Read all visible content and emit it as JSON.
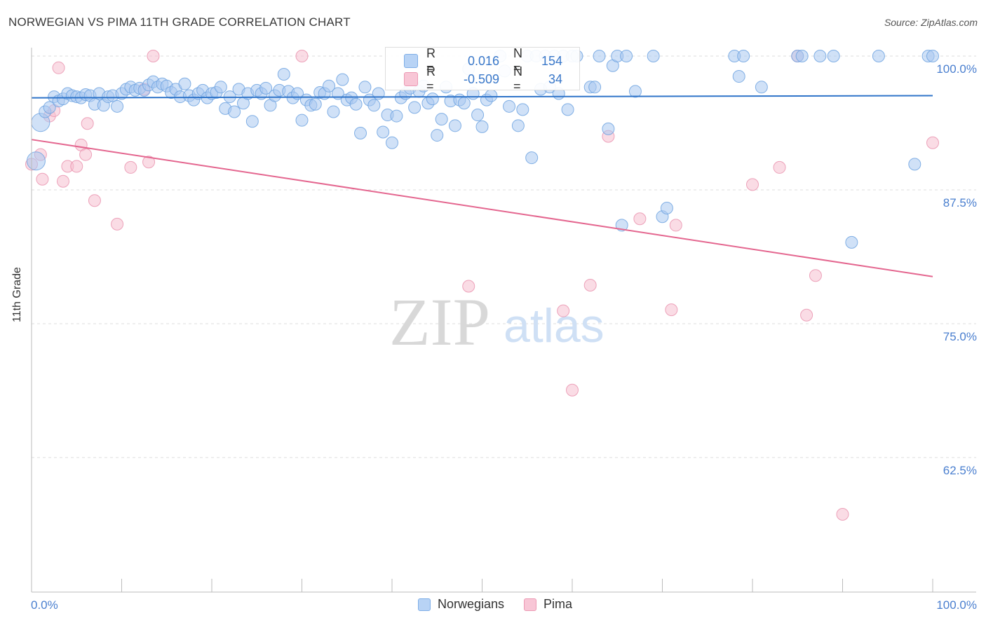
{
  "header": {
    "title": "NORWEGIAN VS PIMA 11TH GRADE CORRELATION CHART",
    "source": "Source: ZipAtlas.com"
  },
  "watermark": {
    "zip": "ZIP",
    "atlas": "atlas"
  },
  "colors": {
    "blue_fill": "#aac8f0",
    "blue_stroke": "#6fa3e0",
    "blue_line": "#2f74c9",
    "pink_fill": "#f6bfd0",
    "pink_stroke": "#e98eab",
    "pink_line": "#e4668f",
    "tick_text": "#4a7fcf",
    "grid": "#dddddd"
  },
  "stats": {
    "norwegians": {
      "r_label": "R =",
      "r": "0.016",
      "n_label": "N =",
      "n": "154"
    },
    "pima": {
      "r_label": "R =",
      "r": "-0.509",
      "n_label": "N =",
      "n": "34"
    }
  },
  "legend": {
    "norwegians": "Norwegians",
    "pima": "Pima"
  },
  "chart_data": {
    "type": "scatter",
    "title": "NORWEGIAN VS PIMA 11TH GRADE CORRELATION CHART",
    "xlabel": "",
    "ylabel": "11th Grade",
    "xlim": [
      0,
      100
    ],
    "ylim": [
      50,
      102
    ],
    "x_tick_labels": {
      "left": "0.0%",
      "right": "100.0%"
    },
    "y_ticks": [
      {
        "value": 100,
        "label": "100.0%"
      },
      {
        "value": 87.5,
        "label": "87.5%"
      },
      {
        "value": 75,
        "label": "75.0%"
      },
      {
        "value": 62.5,
        "label": "62.5%"
      }
    ],
    "series": [
      {
        "name": "Norwegians",
        "trend": {
          "x": [
            0,
            100
          ],
          "y": [
            96.1,
            96.3
          ]
        },
        "points": [
          [
            1,
            93.8
          ],
          [
            0.5,
            90.2
          ],
          [
            1.5,
            94.8
          ],
          [
            2,
            95.2
          ],
          [
            2.5,
            96.2
          ],
          [
            3,
            95.8
          ],
          [
            3.5,
            96.0
          ],
          [
            4,
            96.5
          ],
          [
            4.5,
            96.3
          ],
          [
            5,
            96.2
          ],
          [
            5.5,
            96.1
          ],
          [
            6,
            96.4
          ],
          [
            6.5,
            96.3
          ],
          [
            7,
            95.5
          ],
          [
            7.5,
            96.5
          ],
          [
            8,
            95.4
          ],
          [
            8.5,
            96.2
          ],
          [
            9,
            96.3
          ],
          [
            9.5,
            95.3
          ],
          [
            10,
            96.5
          ],
          [
            10.5,
            96.9
          ],
          [
            11,
            97.1
          ],
          [
            11.5,
            96.8
          ],
          [
            12,
            97.0
          ],
          [
            12.5,
            96.8
          ],
          [
            13,
            97.3
          ],
          [
            13.5,
            97.6
          ],
          [
            14,
            97.1
          ],
          [
            14.5,
            97.4
          ],
          [
            15,
            97.2
          ],
          [
            15.5,
            96.6
          ],
          [
            16,
            96.9
          ],
          [
            16.5,
            96.2
          ],
          [
            17,
            97.4
          ],
          [
            17.5,
            96.3
          ],
          [
            18,
            95.9
          ],
          [
            18.5,
            96.5
          ],
          [
            19,
            96.8
          ],
          [
            19.5,
            96.1
          ],
          [
            20,
            96.5
          ],
          [
            20.5,
            96.6
          ],
          [
            21,
            97.1
          ],
          [
            21.5,
            95.1
          ],
          [
            22,
            96.2
          ],
          [
            22.5,
            94.8
          ],
          [
            23,
            96.9
          ],
          [
            23.5,
            95.6
          ],
          [
            24,
            96.5
          ],
          [
            24.5,
            93.9
          ],
          [
            25,
            96.8
          ],
          [
            25.5,
            96.5
          ],
          [
            26,
            97.0
          ],
          [
            26.5,
            95.4
          ],
          [
            27,
            96.3
          ],
          [
            27.5,
            96.8
          ],
          [
            28,
            98.3
          ],
          [
            28.5,
            96.7
          ],
          [
            29,
            96.1
          ],
          [
            29.5,
            96.5
          ],
          [
            30,
            94.0
          ],
          [
            30.5,
            95.9
          ],
          [
            31,
            95.4
          ],
          [
            31.5,
            95.5
          ],
          [
            32,
            96.6
          ],
          [
            32.5,
            96.5
          ],
          [
            33,
            97.2
          ],
          [
            33.5,
            94.8
          ],
          [
            34,
            96.5
          ],
          [
            34.5,
            97.8
          ],
          [
            35,
            95.9
          ],
          [
            35.5,
            96.1
          ],
          [
            36,
            95.5
          ],
          [
            36.5,
            92.8
          ],
          [
            37,
            97.1
          ],
          [
            37.5,
            95.9
          ],
          [
            38,
            95.4
          ],
          [
            38.5,
            96.5
          ],
          [
            39,
            92.9
          ],
          [
            39.5,
            94.5
          ],
          [
            40,
            91.9
          ],
          [
            40.5,
            94.4
          ],
          [
            41,
            96.1
          ],
          [
            41.5,
            96.5
          ],
          [
            42,
            97.0
          ],
          [
            42.5,
            95.2
          ],
          [
            43,
            96.7
          ],
          [
            43.5,
            97.2
          ],
          [
            44,
            95.6
          ],
          [
            44.5,
            96.0
          ],
          [
            45,
            92.6
          ],
          [
            45.5,
            94.1
          ],
          [
            46,
            97.1
          ],
          [
            46.5,
            95.8
          ],
          [
            47,
            93.5
          ],
          [
            47.5,
            95.9
          ],
          [
            48,
            95.6
          ],
          [
            48.5,
            98.8
          ],
          [
            49,
            96.5
          ],
          [
            49.5,
            94.5
          ],
          [
            50,
            93.4
          ],
          [
            50.5,
            95.9
          ],
          [
            51,
            96.3
          ],
          [
            52,
            100
          ],
          [
            52.5,
            98.6
          ],
          [
            53,
            95.3
          ],
          [
            54,
            93.5
          ],
          [
            54.5,
            95.0
          ],
          [
            55,
            100
          ],
          [
            55.5,
            90.5
          ],
          [
            56,
            100
          ],
          [
            56.5,
            96.9
          ],
          [
            57,
            100
          ],
          [
            57.5,
            97.1
          ],
          [
            58,
            100
          ],
          [
            58.5,
            96.5
          ],
          [
            59,
            100
          ],
          [
            59.5,
            95.0
          ],
          [
            60,
            100
          ],
          [
            60.5,
            100
          ],
          [
            62,
            97.1
          ],
          [
            62.5,
            97.1
          ],
          [
            63,
            100
          ],
          [
            64,
            93.2
          ],
          [
            64.5,
            99.1
          ],
          [
            65,
            100
          ],
          [
            65.5,
            84.2
          ],
          [
            66,
            100
          ],
          [
            67,
            96.7
          ],
          [
            69,
            100
          ],
          [
            70,
            85.0
          ],
          [
            70.5,
            85.8
          ],
          [
            78,
            100
          ],
          [
            78.5,
            98.1
          ],
          [
            79,
            100
          ],
          [
            81,
            97.1
          ],
          [
            85,
            100
          ],
          [
            85.5,
            100
          ],
          [
            87.5,
            100
          ],
          [
            89,
            100
          ],
          [
            91,
            82.6
          ],
          [
            94,
            100
          ],
          [
            98,
            89.9
          ],
          [
            99.5,
            100
          ],
          [
            100,
            100
          ]
        ]
      },
      {
        "name": "Pima",
        "trend": {
          "x": [
            0,
            100
          ],
          "y": [
            92.2,
            79.4
          ]
        },
        "points": [
          [
            0,
            89.9
          ],
          [
            1,
            90.8
          ],
          [
            1.2,
            88.5
          ],
          [
            2,
            94.4
          ],
          [
            2.5,
            94.9
          ],
          [
            3,
            98.9
          ],
          [
            3.5,
            88.3
          ],
          [
            4,
            89.7
          ],
          [
            5,
            89.7
          ],
          [
            5.5,
            91.7
          ],
          [
            6,
            90.8
          ],
          [
            6.2,
            93.7
          ],
          [
            7,
            86.5
          ],
          [
            9.5,
            84.3
          ],
          [
            11,
            89.6
          ],
          [
            12.5,
            96.9
          ],
          [
            13,
            90.1
          ],
          [
            13.5,
            100
          ],
          [
            30,
            100
          ],
          [
            48.5,
            78.5
          ],
          [
            59,
            76.2
          ],
          [
            60,
            68.8
          ],
          [
            62,
            78.6
          ],
          [
            64,
            92.5
          ],
          [
            67.5,
            84.8
          ],
          [
            71,
            76.3
          ],
          [
            71.5,
            84.2
          ],
          [
            80,
            88.0
          ],
          [
            83,
            89.6
          ],
          [
            85,
            100
          ],
          [
            86,
            75.8
          ],
          [
            87,
            79.5
          ],
          [
            90,
            57.2
          ],
          [
            100,
            91.9
          ]
        ]
      }
    ]
  }
}
